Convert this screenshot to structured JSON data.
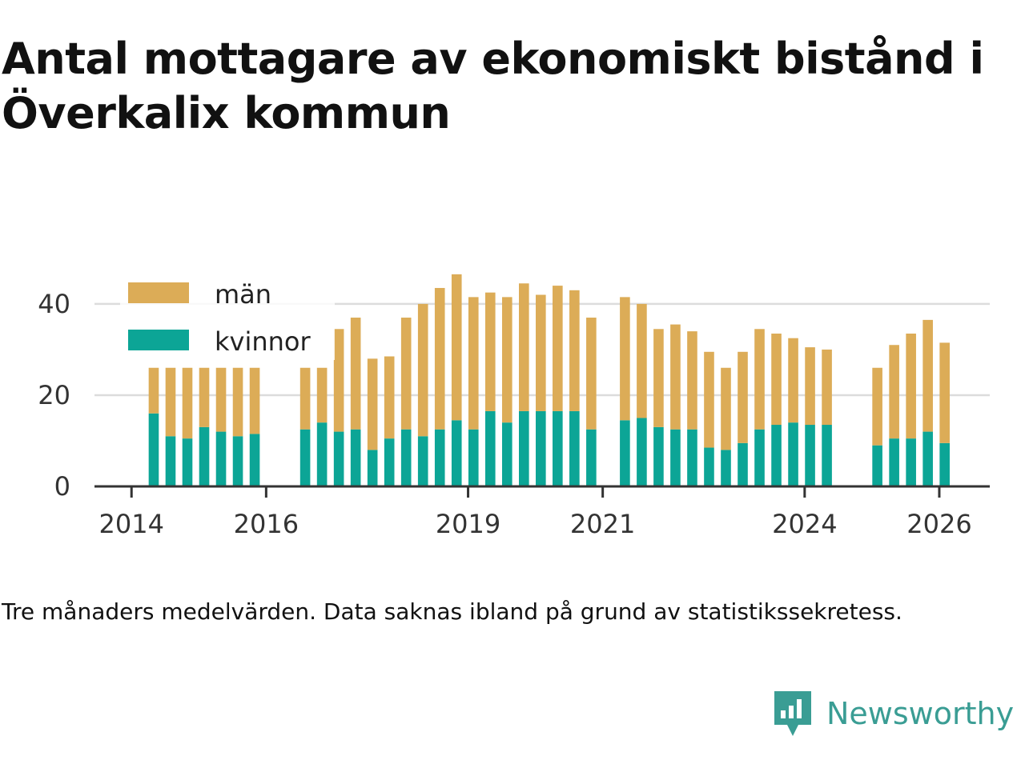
{
  "title": "Antal mottagare av ekonomiskt bistånd i Överkalix kommun",
  "caption": "Tre månaders medelvärden. Data saknas ibland på grund av statistikssekretess.",
  "brand": {
    "name": "Newsworthy"
  },
  "colors": {
    "men": "#dcac57",
    "women": "#0ca596",
    "grid": "#dcdcdc",
    "axis": "#333333",
    "brand": "#3a9d94"
  },
  "chart_data": {
    "type": "bar",
    "stacked": true,
    "title": "Antal mottagare av ekonomiskt bistånd i Överkalix kommun",
    "xlabel": "",
    "ylabel": "",
    "ylim": [
      0,
      47
    ],
    "yticks": [
      0,
      20,
      40
    ],
    "xticks": [
      {
        "label": "2014",
        "x": 2014.0
      },
      {
        "label": "2016",
        "x": 2016.0
      },
      {
        "label": "2019",
        "x": 2019.0
      },
      {
        "label": "2021",
        "x": 2021.0
      },
      {
        "label": "2024",
        "x": 2024.0
      },
      {
        "label": "2026",
        "x": 2026.0
      }
    ],
    "xlim": [
      2013.45,
      2026.75
    ],
    "legend": {
      "position": "top-left",
      "entries": [
        "män",
        "kvinnor"
      ]
    },
    "bar_width_years": 0.15,
    "x": [
      2014.33,
      2014.58,
      2014.83,
      2015.08,
      2015.33,
      2015.58,
      2015.83,
      2016.58,
      2016.83,
      2017.08,
      2017.33,
      2017.58,
      2017.83,
      2018.08,
      2018.33,
      2018.58,
      2018.83,
      2019.08,
      2019.33,
      2019.58,
      2019.83,
      2020.08,
      2020.33,
      2020.58,
      2020.83,
      2021.33,
      2021.58,
      2021.83,
      2022.08,
      2022.33,
      2022.58,
      2022.83,
      2023.08,
      2023.33,
      2023.58,
      2023.83,
      2024.08,
      2024.33,
      2025.08,
      2025.33,
      2025.58,
      2025.83,
      2026.08
    ],
    "series": [
      {
        "name": "kvinnor",
        "values": [
          16,
          11,
          10.5,
          13,
          12,
          11,
          11.5,
          12.5,
          14,
          12,
          12.5,
          8,
          10.5,
          12.5,
          11,
          12.5,
          14.5,
          12.5,
          16.5,
          14,
          16.5,
          16.5,
          16.5,
          16.5,
          12.5,
          14.5,
          15,
          13,
          12.5,
          12.5,
          8.5,
          8,
          9.5,
          12.5,
          13.5,
          14,
          13.5,
          13.5,
          9,
          10.5,
          10.5,
          12,
          9.5
        ]
      },
      {
        "name": "män",
        "values": [
          10,
          15,
          15.5,
          13,
          14,
          15,
          14.5,
          13.5,
          12,
          22.5,
          24.5,
          20,
          18,
          24.5,
          29,
          31,
          32,
          29,
          26,
          27.5,
          28,
          25.5,
          27.5,
          26.5,
          24.5,
          27,
          25,
          21.5,
          23,
          21.5,
          21,
          18,
          20,
          22,
          20,
          18.5,
          17,
          16.5,
          17,
          20.5,
          23,
          24.5,
          22
        ]
      }
    ]
  }
}
